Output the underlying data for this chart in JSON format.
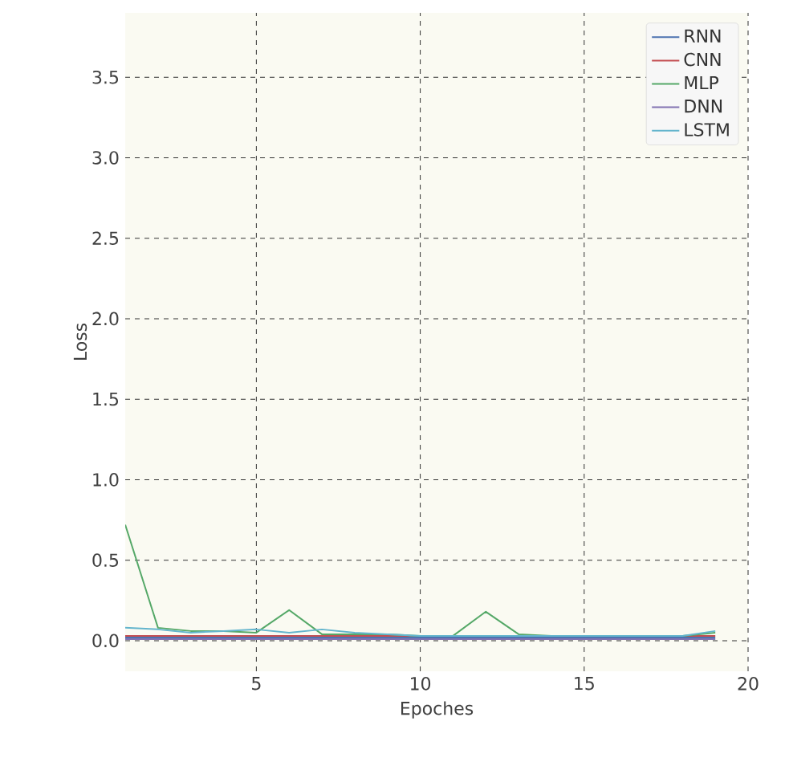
{
  "chart_data": {
    "type": "line",
    "xlabel": "Epoches",
    "ylabel": "Loss",
    "xlim": [
      1,
      20
    ],
    "ylim": [
      -0.19,
      3.9
    ],
    "xticks": [
      5,
      10,
      15,
      20
    ],
    "yticks": [
      {
        "value": 0,
        "label": "0.0"
      },
      0.5,
      {
        "value": 1,
        "label": "1.0"
      },
      1.5,
      {
        "value": 2,
        "label": "2.0"
      },
      2.5,
      {
        "value": 3,
        "label": "3.0"
      },
      3.5
    ],
    "x": [
      1,
      2,
      3,
      4,
      5,
      6,
      7,
      8,
      9,
      10,
      11,
      12,
      13,
      14,
      15,
      16,
      17,
      18,
      19
    ],
    "grid": true,
    "legend": "top right",
    "line_style": "solid",
    "marker": "none",
    "series": [
      {
        "name": "RNN",
        "color": "#4c72b0",
        "values": [
          0.02,
          0.02,
          0.02,
          0.02,
          0.02,
          0.02,
          0.02,
          0.02,
          0.02,
          0.02,
          0.02,
          0.02,
          0.02,
          0.02,
          0.02,
          0.02,
          0.02,
          0.02,
          0.02
        ]
      },
      {
        "name": "CNN",
        "color": "#c44e52",
        "values": [
          0.03,
          0.03,
          0.03,
          0.03,
          0.03,
          0.03,
          0.03,
          0.03,
          0.03,
          0.03,
          0.03,
          0.03,
          0.03,
          0.03,
          0.03,
          0.03,
          0.03,
          0.03,
          0.03
        ]
      },
      {
        "name": "MLP",
        "color": "#55a868",
        "values": [
          0.72,
          0.08,
          0.06,
          0.06,
          0.05,
          0.19,
          0.04,
          0.04,
          0.04,
          0.03,
          0.03,
          0.18,
          0.04,
          0.03,
          0.03,
          0.03,
          0.03,
          0.03,
          0.05
        ]
      },
      {
        "name": "DNN",
        "color": "#8172b2",
        "values": [
          0.01,
          0.01,
          0.01,
          0.01,
          0.01,
          0.01,
          0.01,
          0.01,
          0.01,
          0.01,
          0.01,
          0.01,
          0.01,
          0.01,
          0.01,
          0.01,
          0.01,
          0.01,
          0.01
        ]
      },
      {
        "name": "LSTM",
        "color": "#64b5cd",
        "values": [
          0.08,
          0.07,
          0.05,
          0.06,
          0.07,
          0.05,
          0.07,
          0.05,
          0.04,
          0.03,
          0.03,
          0.03,
          0.03,
          0.03,
          0.03,
          0.03,
          0.03,
          0.03,
          0.06
        ]
      }
    ]
  }
}
